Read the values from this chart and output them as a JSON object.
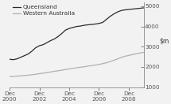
{
  "ylim": [
    1000,
    5200
  ],
  "yticks": [
    1000,
    2000,
    3000,
    4000,
    5000
  ],
  "xtick_positions": [
    0,
    2,
    4,
    6,
    8
  ],
  "xtick_labels": [
    "Dec\n2000",
    "Dec\n2002",
    "Dec\n2004",
    "Dec\n2006",
    "Dec\n2008"
  ],
  "qld_color": "#2a2a2a",
  "wa_color": "#b0b0b0",
  "legend_qld": "Queensland",
  "legend_wa": "Western Australia",
  "bg_color": "#f2f2f2",
  "qld_data": [
    2380,
    2360,
    2400,
    2480,
    2560,
    2640,
    2780,
    2950,
    3050,
    3100,
    3200,
    3300,
    3380,
    3500,
    3650,
    3820,
    3900,
    3950,
    4000,
    4020,
    4060,
    4080,
    4100,
    4120,
    4150,
    4200,
    4350,
    4500,
    4620,
    4720,
    4790,
    4820,
    4840,
    4860,
    4880,
    4900,
    4920
  ],
  "wa_data": [
    1520,
    1530,
    1545,
    1560,
    1575,
    1595,
    1615,
    1640,
    1665,
    1695,
    1720,
    1750,
    1785,
    1810,
    1840,
    1870,
    1900,
    1930,
    1960,
    1985,
    2010,
    2040,
    2065,
    2095,
    2125,
    2165,
    2210,
    2265,
    2330,
    2400,
    2470,
    2530,
    2570,
    2610,
    2650,
    2690,
    2720
  ],
  "n_points": 37,
  "x_range": [
    0,
    9
  ]
}
